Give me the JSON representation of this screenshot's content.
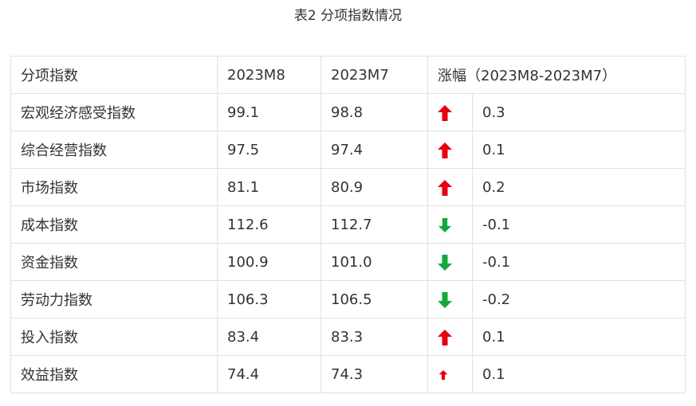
{
  "title": "表2  分项指数情况",
  "colors": {
    "up": "#e60012",
    "down": "#14a83b",
    "border": "#e2e2e2"
  },
  "table": {
    "headers": [
      "分项指数",
      "2023M8",
      "2023M7",
      "涨幅（2023M8-2023M7）"
    ],
    "rows": [
      {
        "name": "宏观经济感受指数",
        "m8": "99.1",
        "m7": "98.8",
        "direction": "up-arrow-icon",
        "change": "0.3"
      },
      {
        "name": "综合经营指数",
        "m8": "97.5",
        "m7": "97.4",
        "direction": "up-arrow-icon",
        "change": "0.1"
      },
      {
        "name": "市场指数",
        "m8": "81.1",
        "m7": "80.9",
        "direction": "up-arrow-icon",
        "change": "0.2"
      },
      {
        "name": "成本指数",
        "m8": "112.6",
        "m7": "112.7",
        "direction": "down-arrow-icon",
        "change": "-0.1"
      },
      {
        "name": "资金指数",
        "m8": "100.9",
        "m7": "101.0",
        "direction": "down-arrow-icon",
        "change": "-0.1"
      },
      {
        "name": "劳动力指数",
        "m8": "106.3",
        "m7": "106.5",
        "direction": "down-arrow-icon",
        "change": "-0.2"
      },
      {
        "name": "投入指数",
        "m8": "83.4",
        "m7": "83.3",
        "direction": "up-arrow-icon",
        "change": "0.1"
      },
      {
        "name": "效益指数",
        "m8": "74.4",
        "m7": "74.3",
        "direction": "up-arrow-icon",
        "change": "0.1"
      }
    ]
  }
}
